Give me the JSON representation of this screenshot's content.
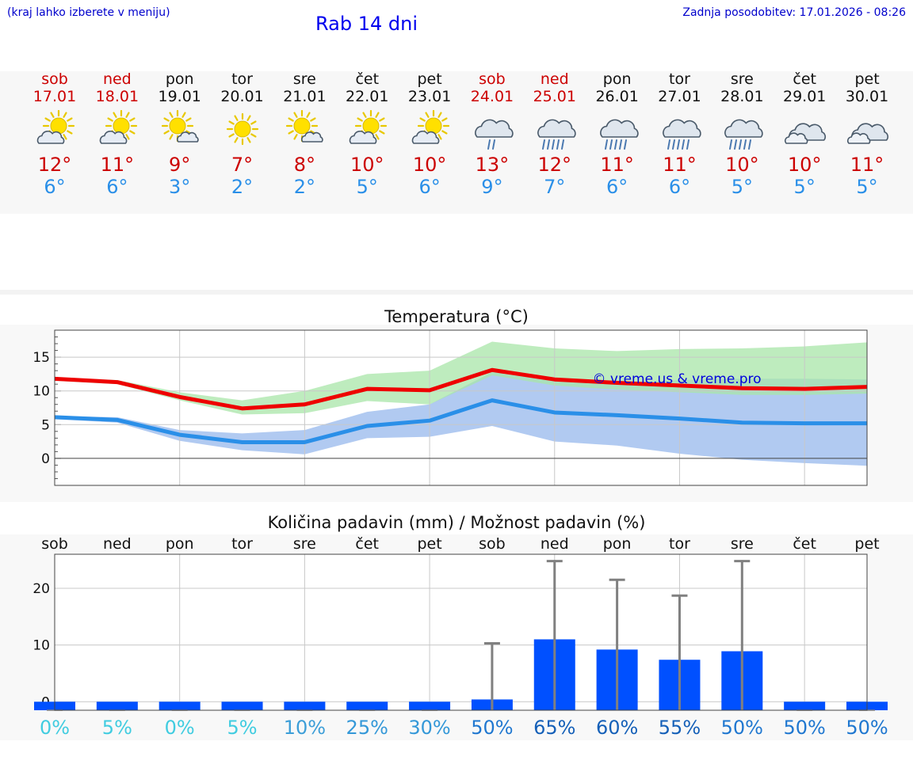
{
  "header": {
    "hint": "(kraj lahko izberete v meniju)",
    "title": "Rab 14 dni",
    "updated": "Zadnja posodobitev: 17.01.2026 - 08:26"
  },
  "colors": {
    "weekend": "#cc0000",
    "tmax": "#cc0000",
    "tmin": "#2a8fe8",
    "max_line": "#ee0000",
    "min_line": "#2a8fe8",
    "max_band": "#a8e6a8",
    "min_band": "#a8c4f0",
    "overlap": "#7fc8a8",
    "precip_bar": "#0050ff",
    "error_bar": "#808080"
  },
  "days": [
    {
      "name": "sob",
      "date": "17.01",
      "weekend": true,
      "icon": "sun-cloud-icon",
      "tmax": "12°",
      "tmin": "6°"
    },
    {
      "name": "ned",
      "date": "18.01",
      "weekend": true,
      "icon": "sun-cloud-icon",
      "tmax": "11°",
      "tmin": "6°"
    },
    {
      "name": "pon",
      "date": "19.01",
      "weekend": false,
      "icon": "sun-small-cloud-icon",
      "tmax": "9°",
      "tmin": "3°"
    },
    {
      "name": "tor",
      "date": "20.01",
      "weekend": false,
      "icon": "sun-icon",
      "tmax": "7°",
      "tmin": "2°"
    },
    {
      "name": "sre",
      "date": "21.01",
      "weekend": false,
      "icon": "sun-small-cloud-icon",
      "tmax": "8°",
      "tmin": "2°"
    },
    {
      "name": "čet",
      "date": "22.01",
      "weekend": false,
      "icon": "sun-cloud-icon",
      "tmax": "10°",
      "tmin": "5°"
    },
    {
      "name": "pet",
      "date": "23.01",
      "weekend": false,
      "icon": "sun-cloud-icon",
      "tmax": "10°",
      "tmin": "6°"
    },
    {
      "name": "sob",
      "date": "24.01",
      "weekend": true,
      "icon": "cloud-light-rain-icon",
      "tmax": "13°",
      "tmin": "9°"
    },
    {
      "name": "ned",
      "date": "25.01",
      "weekend": true,
      "icon": "cloud-rain-icon",
      "tmax": "12°",
      "tmin": "7°"
    },
    {
      "name": "pon",
      "date": "26.01",
      "weekend": false,
      "icon": "cloud-rain-icon",
      "tmax": "11°",
      "tmin": "6°"
    },
    {
      "name": "tor",
      "date": "27.01",
      "weekend": false,
      "icon": "cloud-rain-icon",
      "tmax": "11°",
      "tmin": "6°"
    },
    {
      "name": "sre",
      "date": "28.01",
      "weekend": false,
      "icon": "cloud-rain-icon",
      "tmax": "10°",
      "tmin": "5°"
    },
    {
      "name": "čet",
      "date": "29.01",
      "weekend": false,
      "icon": "cloud-icon",
      "tmax": "10°",
      "tmin": "5°"
    },
    {
      "name": "pet",
      "date": "30.01",
      "weekend": false,
      "icon": "cloud-icon",
      "tmax": "11°",
      "tmin": "5°"
    }
  ],
  "chart_data": [
    {
      "type": "line",
      "title": "Temperatura (°C)",
      "watermark": "© vreme.us & vreme.pro",
      "x": [
        "17.01",
        "18.01",
        "19.01",
        "20.01",
        "21.01",
        "22.01",
        "23.01",
        "24.01",
        "25.01",
        "26.01",
        "27.01",
        "28.01",
        "29.01",
        "30.01"
      ],
      "ylim": [
        -4,
        19
      ],
      "yticks": [
        0,
        5,
        10,
        15
      ],
      "ytick_labels": [
        "0",
        "5",
        "10",
        "15"
      ],
      "series": [
        {
          "name": "max",
          "values": [
            11.8,
            11.3,
            9.1,
            7.4,
            8.0,
            10.3,
            10.1,
            13.1,
            11.7,
            11.2,
            10.8,
            10.4,
            10.3,
            10.6
          ]
        },
        {
          "name": "min",
          "values": [
            6.1,
            5.7,
            3.5,
            2.4,
            2.4,
            4.8,
            5.6,
            8.6,
            6.8,
            6.4,
            5.9,
            5.3,
            5.2,
            5.2
          ]
        },
        {
          "name": "max_range_low",
          "values": [
            11.5,
            11.0,
            8.6,
            6.5,
            6.7,
            8.5,
            8.0,
            12.3,
            10.8,
            10.2,
            9.8,
            9.4,
            9.4,
            9.6
          ]
        },
        {
          "name": "max_range_high",
          "values": [
            12.0,
            11.6,
            9.8,
            8.6,
            10.0,
            12.5,
            13.0,
            17.3,
            16.3,
            15.9,
            16.2,
            16.3,
            16.6,
            17.2
          ]
        },
        {
          "name": "min_range_low",
          "values": [
            5.8,
            5.3,
            2.6,
            1.2,
            0.6,
            3.0,
            3.2,
            4.8,
            2.5,
            1.9,
            0.7,
            -0.2,
            -0.7,
            -1.1
          ]
        },
        {
          "name": "min_range_high",
          "values": [
            6.3,
            6.1,
            4.2,
            3.7,
            4.2,
            6.9,
            8.0,
            12.8,
            11.5,
            11.2,
            11.6,
            11.8,
            11.8,
            11.7
          ]
        }
      ]
    },
    {
      "type": "bar",
      "title": "Količina padavin (mm) / Možnost padavin (%)",
      "categories": [
        "sob",
        "ned",
        "pon",
        "tor",
        "sre",
        "čet",
        "pet",
        "sob",
        "ned",
        "pon",
        "tor",
        "sre",
        "čet",
        "pet"
      ],
      "ylim": [
        -1.5,
        26
      ],
      "yticks": [
        0,
        10,
        20
      ],
      "ytick_labels": [
        "0",
        "10",
        "20"
      ],
      "values": [
        0,
        0,
        0,
        0,
        0,
        0,
        0,
        0.4,
        11.0,
        9.2,
        7.4,
        8.9,
        0,
        0
      ],
      "error_high": [
        0,
        0,
        0,
        0,
        0,
        0,
        0,
        10.3,
        24.8,
        21.5,
        18.7,
        24.8,
        0,
        0
      ],
      "probability": [
        "0%",
        "5%",
        "0%",
        "5%",
        "10%",
        "25%",
        "30%",
        "50%",
        "65%",
        "60%",
        "55%",
        "50%",
        "50%",
        "50%"
      ]
    }
  ]
}
